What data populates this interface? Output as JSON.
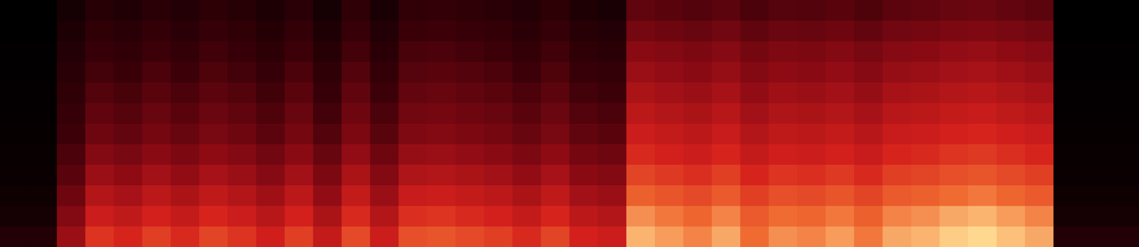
{
  "chart_data": {
    "type": "heatmap",
    "tick_labels": false,
    "grid": false,
    "cells": [
      [
        4,
        4,
        14,
        22,
        19,
        24,
        20,
        25,
        22,
        17,
        24,
        14,
        26,
        16,
        27,
        28,
        26,
        24,
        20,
        25,
        18,
        16,
        42,
        40,
        38,
        41,
        36,
        39,
        38,
        40,
        37,
        41,
        42,
        44,
        45,
        43,
        41,
        4,
        4,
        4
      ],
      [
        4,
        4,
        17,
        26,
        23,
        28,
        24,
        29,
        26,
        21,
        28,
        18,
        30,
        20,
        31,
        32,
        30,
        28,
        24,
        29,
        22,
        20,
        48,
        46,
        44,
        47,
        42,
        45,
        44,
        46,
        43,
        47,
        48,
        50,
        51,
        49,
        47,
        4,
        4,
        4
      ],
      [
        5,
        5,
        20,
        30,
        27,
        32,
        28,
        33,
        30,
        25,
        32,
        22,
        34,
        24,
        35,
        36,
        34,
        32,
        28,
        33,
        26,
        24,
        54,
        52,
        50,
        53,
        48,
        51,
        50,
        52,
        49,
        53,
        54,
        56,
        57,
        55,
        53,
        5,
        5,
        5
      ],
      [
        5,
        5,
        23,
        34,
        31,
        36,
        32,
        37,
        34,
        29,
        36,
        26,
        38,
        28,
        39,
        40,
        38,
        36,
        32,
        37,
        30,
        28,
        58,
        56,
        54,
        57,
        52,
        55,
        54,
        56,
        53,
        57,
        58,
        60,
        61,
        59,
        57,
        5,
        5,
        5
      ],
      [
        6,
        6,
        26,
        38,
        35,
        40,
        36,
        41,
        38,
        33,
        40,
        30,
        42,
        32,
        43,
        44,
        42,
        40,
        36,
        41,
        34,
        32,
        62,
        60,
        58,
        61,
        56,
        59,
        58,
        60,
        57,
        61,
        62,
        64,
        65,
        63,
        61,
        6,
        6,
        6
      ],
      [
        6,
        6,
        29,
        42,
        39,
        44,
        40,
        45,
        42,
        37,
        44,
        34,
        46,
        36,
        47,
        48,
        46,
        44,
        40,
        45,
        38,
        36,
        66,
        64,
        62,
        65,
        60,
        63,
        62,
        64,
        61,
        65,
        66,
        68,
        69,
        67,
        65,
        6,
        6,
        6
      ],
      [
        7,
        7,
        32,
        46,
        43,
        48,
        44,
        49,
        46,
        41,
        48,
        38,
        50,
        40,
        51,
        52,
        50,
        48,
        44,
        49,
        42,
        40,
        70,
        68,
        66,
        69,
        64,
        67,
        66,
        68,
        65,
        69,
        70,
        72,
        73,
        71,
        69,
        7,
        7,
        7
      ],
      [
        8,
        8,
        36,
        52,
        49,
        54,
        50,
        55,
        52,
        47,
        54,
        44,
        56,
        46,
        57,
        58,
        56,
        54,
        50,
        55,
        48,
        46,
        74,
        72,
        70,
        73,
        68,
        71,
        70,
        72,
        69,
        73,
        74,
        76,
        77,
        75,
        73,
        8,
        8,
        8
      ],
      [
        9,
        9,
        40,
        58,
        55,
        60,
        56,
        61,
        58,
        53,
        60,
        50,
        62,
        52,
        63,
        64,
        62,
        60,
        56,
        61,
        54,
        52,
        79,
        77,
        75,
        78,
        73,
        76,
        75,
        77,
        74,
        78,
        79,
        81,
        82,
        80,
        78,
        9,
        9,
        9
      ],
      [
        11,
        11,
        46,
        64,
        61,
        66,
        62,
        67,
        64,
        59,
        66,
        56,
        68,
        58,
        69,
        70,
        68,
        66,
        62,
        67,
        60,
        58,
        84,
        82,
        80,
        83,
        78,
        81,
        80,
        82,
        79,
        83,
        84,
        86,
        87,
        85,
        83,
        11,
        11,
        11
      ],
      [
        14,
        14,
        52,
        70,
        67,
        72,
        68,
        73,
        70,
        65,
        72,
        62,
        74,
        64,
        75,
        76,
        74,
        72,
        68,
        73,
        66,
        64,
        89,
        87,
        85,
        88,
        83,
        86,
        85,
        87,
        84,
        88,
        89,
        91,
        92,
        90,
        88,
        14,
        14,
        14
      ],
      [
        20,
        20,
        58,
        76,
        73,
        78,
        74,
        79,
        76,
        71,
        78,
        68,
        80,
        70,
        81,
        82,
        80,
        78,
        74,
        79,
        72,
        70,
        92,
        90,
        88,
        91,
        86,
        89,
        88,
        90,
        87,
        91,
        92,
        94,
        95,
        93,
        91,
        20,
        20,
        20
      ]
    ]
  }
}
